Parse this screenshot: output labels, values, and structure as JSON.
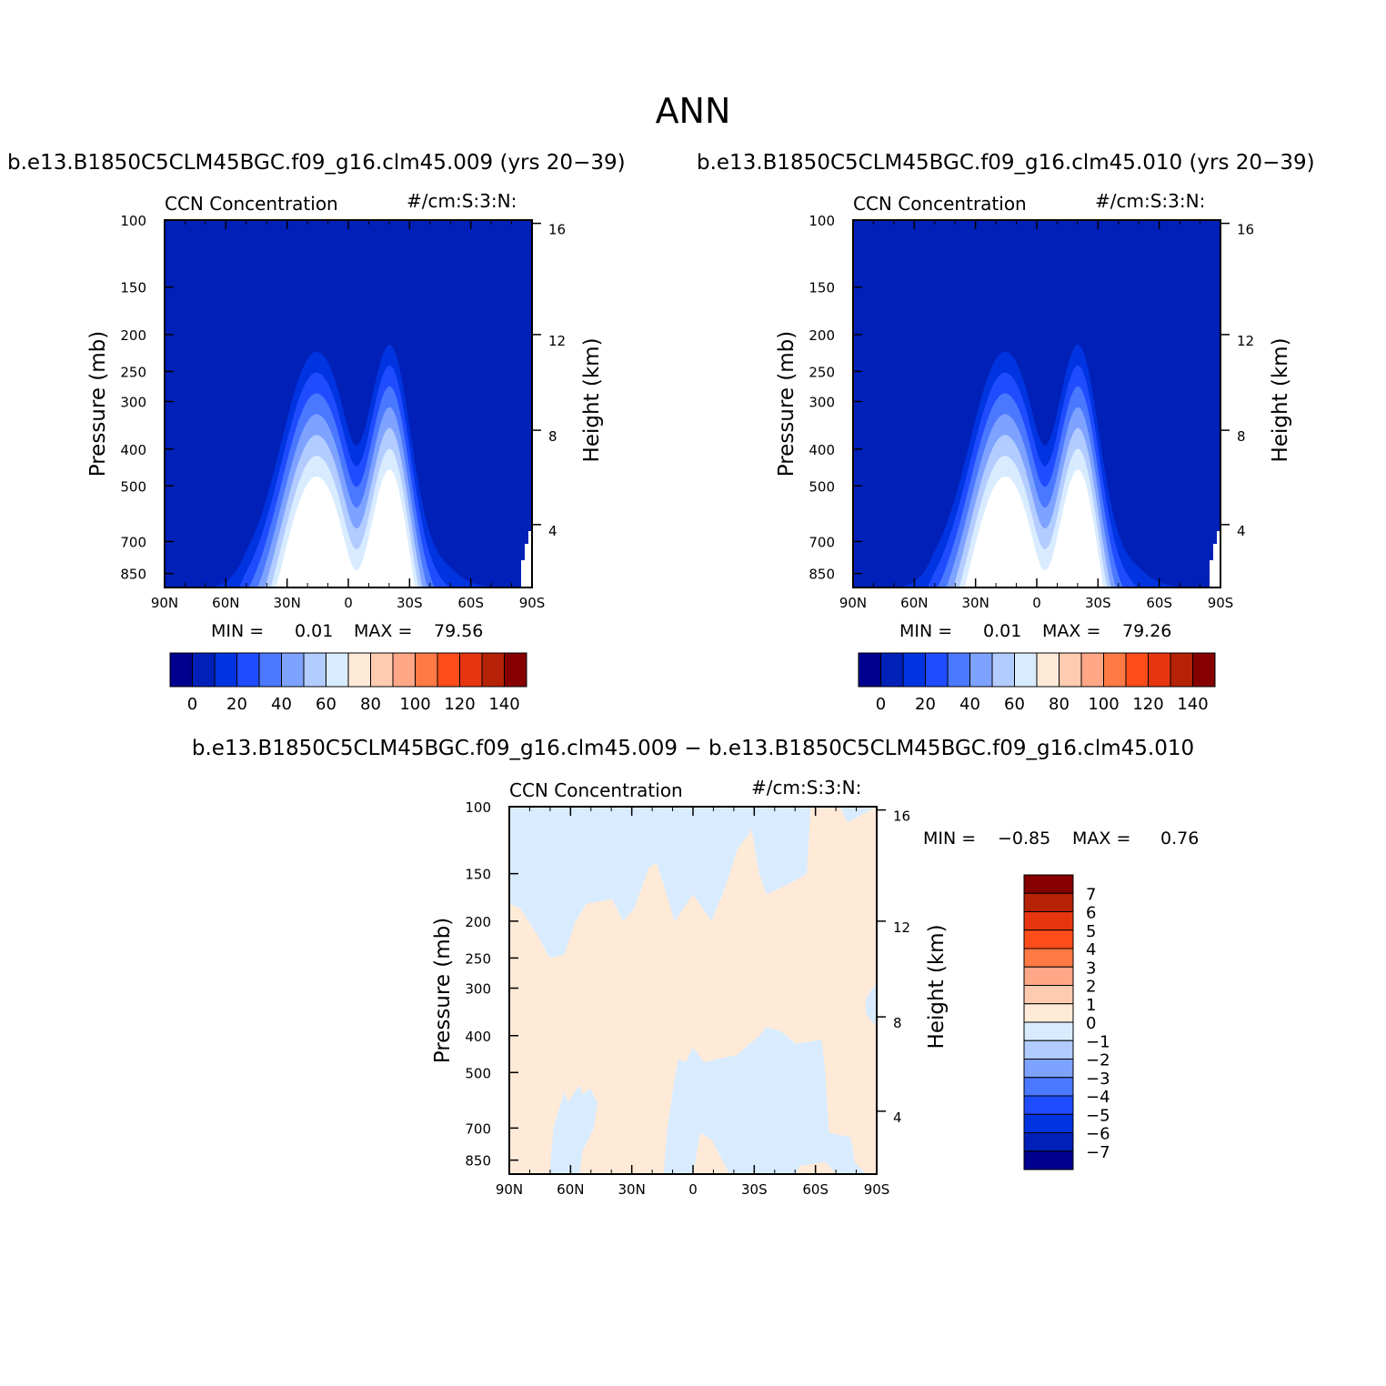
{
  "main_title": "ANN",
  "panel_titles": [
    "b.e13.B1850C5CLM45BGC.f09_g16.clm45.009 (yrs 20−39)",
    "b.e13.B1850C5CLM45BGC.f09_g16.clm45.010 (yrs 20−39)"
  ],
  "diff_title": "b.e13.B1850C5CLM45BGC.f09_g16.clm45.009 − b.e13.B1850C5CLM45BGC.f09_g16.clm45.010",
  "chart_data": [
    {
      "type": "heatmap",
      "subtitle_left": "CCN Concentration",
      "subtitle_right": "#/cm:S:3:N:",
      "ylabel": "Pressure (mb)",
      "y2label": "Height (km)",
      "x_ticks": [
        "90N",
        "60N",
        "30N",
        "0",
        "30S",
        "60S",
        "90S"
      ],
      "y_ticks": [
        "100",
        "150",
        "200",
        "250",
        "300",
        "400",
        "500",
        "700",
        "850"
      ],
      "y2_ticks": [
        "16",
        "12",
        "8",
        "4"
      ],
      "min_label": "MIN =",
      "min_value": "0.01",
      "max_label": "MAX =",
      "max_value": "79.56",
      "colorbar_labels": [
        "0",
        "20",
        "40",
        "60",
        "80",
        "100",
        "120",
        "140"
      ],
      "colorbar_colors": [
        "#00008f",
        "#0020b8",
        "#0034e0",
        "#1f4cff",
        "#4a78ff",
        "#7ea2ff",
        "#b2ccff",
        "#d9ecff",
        "#ffead8",
        "#ffcbb0",
        "#ffa786",
        "#ff7a45",
        "#ff4d1a",
        "#e63610",
        "#b52206",
        "#860000"
      ],
      "contour_levels": [
        10,
        20,
        30,
        40,
        50,
        60,
        70
      ]
    },
    {
      "type": "heatmap",
      "subtitle_left": "CCN Concentration",
      "subtitle_right": "#/cm:S:3:N:",
      "ylabel": "Pressure (mb)",
      "y2label": "Height (km)",
      "x_ticks": [
        "90N",
        "60N",
        "30N",
        "0",
        "30S",
        "60S",
        "90S"
      ],
      "y_ticks": [
        "100",
        "150",
        "200",
        "250",
        "300",
        "400",
        "500",
        "700",
        "850"
      ],
      "y2_ticks": [
        "16",
        "12",
        "8",
        "4"
      ],
      "min_label": "MIN =",
      "min_value": "0.01",
      "max_label": "MAX =",
      "max_value": "79.26",
      "colorbar_labels": [
        "0",
        "20",
        "40",
        "60",
        "80",
        "100",
        "120",
        "140"
      ],
      "colorbar_colors": [
        "#00008f",
        "#0020b8",
        "#0034e0",
        "#1f4cff",
        "#4a78ff",
        "#7ea2ff",
        "#b2ccff",
        "#d9ecff",
        "#ffead8",
        "#ffcbb0",
        "#ffa786",
        "#ff7a45",
        "#ff4d1a",
        "#e63610",
        "#b52206",
        "#860000"
      ],
      "contour_levels": [
        10,
        20,
        30,
        40,
        50,
        60,
        70
      ]
    },
    {
      "type": "heatmap",
      "subtitle_left": "CCN Concentration",
      "subtitle_right": "#/cm:S:3:N:",
      "ylabel": "Pressure (mb)",
      "y2label": "Height (km)",
      "x_ticks": [
        "90N",
        "60N",
        "30N",
        "0",
        "30S",
        "60S",
        "90S"
      ],
      "y_ticks": [
        "100",
        "150",
        "200",
        "250",
        "300",
        "400",
        "500",
        "700",
        "850"
      ],
      "y2_ticks": [
        "16",
        "12",
        "8",
        "4"
      ],
      "min_label": "MIN =",
      "min_value": "−0.85",
      "max_label": "MAX =",
      "max_value": "0.76",
      "colorbar_labels": [
        "7",
        "6",
        "5",
        "4",
        "3",
        "2",
        "1",
        "0",
        "−1",
        "−2",
        "−3",
        "−4",
        "−5",
        "−6",
        "−7"
      ],
      "colorbar_colors": [
        "#860000",
        "#b52206",
        "#e63610",
        "#ff4d1a",
        "#ff7a45",
        "#ffa786",
        "#ffcbb0",
        "#ffead8",
        "#d9ecff",
        "#b2ccff",
        "#7ea2ff",
        "#4a78ff",
        "#1f4cff",
        "#0034e0",
        "#0020b8",
        "#00008f"
      ],
      "field_colors": {
        "negative": "#d9ecff",
        "positive": "#ffead8"
      }
    }
  ]
}
